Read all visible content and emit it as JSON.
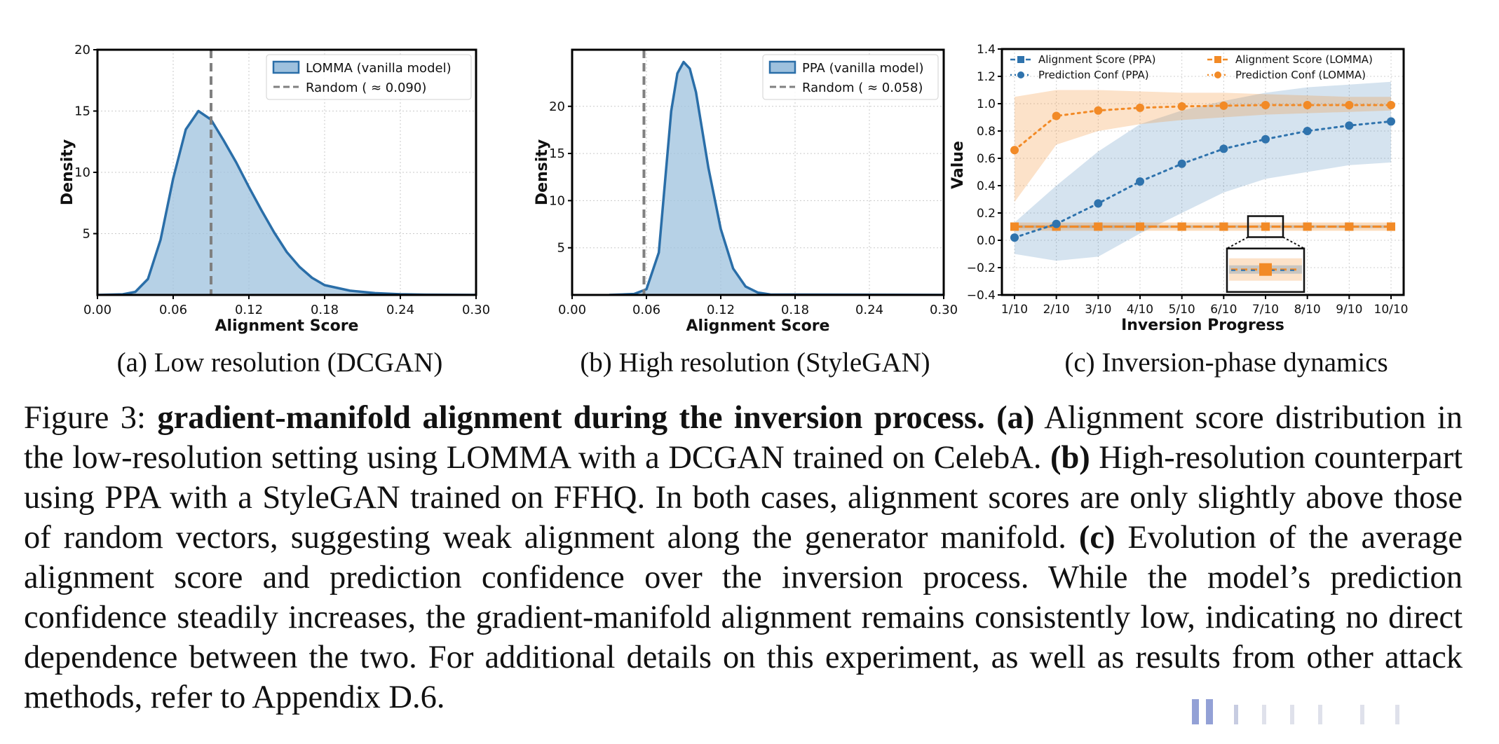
{
  "figure": {
    "subcaptions": {
      "a": "(a) Low resolution (DCGAN)",
      "b": "(b) High resolution (StyleGAN)",
      "c": "(c) Inversion-phase dynamics"
    },
    "caption": {
      "fig_label": "Figure 3: ",
      "title_bold": "gradient-manifold alignment during the inversion process.",
      "a_tag": "(a)",
      "a_text": " Alignment score distribution in the low-resolution setting using LOMMA with a DCGAN trained on CelebA. ",
      "b_tag": "(b)",
      "b_text": " High-resolution counterpart using PPA with a StyleGAN trained on FFHQ. In both cases, alignment scores are only slightly above those of random vectors, suggesting weak alignment along the generator manifold. ",
      "c_tag": "(c)",
      "c_text": " Evolution of the average alignment score and prediction confidence over the inversion process. While the model’s prediction confidence steadily increases, the gradient-manifold alignment remains consistently low, indicating no direct dependence between the two. For additional details on this experiment, as well as results from other attack methods, refer to Appendix D.6."
    }
  },
  "chart_data": [
    {
      "type": "area",
      "title": "",
      "xlabel": "Alignment Score",
      "ylabel": "Density",
      "xlim": [
        0.0,
        0.3
      ],
      "ylim": [
        0,
        20
      ],
      "xticks": [
        "0.00",
        "0.06",
        "0.12",
        "0.18",
        "0.24",
        "0.30"
      ],
      "yticks": [
        "5",
        "10",
        "15",
        "20"
      ],
      "grid": true,
      "legend_position": "top-right",
      "fill_color": "#9ec1de",
      "line_color": "#2a6ea8",
      "series": [
        {
          "name": "LOMMA (vanilla model)",
          "x": [
            0.0,
            0.02,
            0.03,
            0.04,
            0.05,
            0.06,
            0.07,
            0.08,
            0.09,
            0.1,
            0.11,
            0.12,
            0.13,
            0.14,
            0.15,
            0.16,
            0.17,
            0.18,
            0.2,
            0.22,
            0.24,
            0.26,
            0.3
          ],
          "y": [
            0.0,
            0.05,
            0.25,
            1.3,
            4.5,
            9.5,
            13.5,
            15.0,
            14.3,
            12.6,
            10.8,
            8.8,
            6.9,
            5.1,
            3.5,
            2.3,
            1.4,
            0.8,
            0.35,
            0.15,
            0.06,
            0.02,
            0.0
          ]
        }
      ],
      "reference_line": {
        "name": "Random ( ≈ 0.090)",
        "x": 0.09,
        "color": "#808080"
      }
    },
    {
      "type": "area",
      "title": "",
      "xlabel": "Alignment Score",
      "ylabel": "Density",
      "xlim": [
        0.0,
        0.3
      ],
      "ylim": [
        0,
        26
      ],
      "xticks": [
        "0.00",
        "0.06",
        "0.12",
        "0.18",
        "0.24",
        "0.30"
      ],
      "yticks": [
        "5",
        "10",
        "15",
        "20"
      ],
      "grid": true,
      "legend_position": "top-right",
      "fill_color": "#9ec1de",
      "line_color": "#2a6ea8",
      "series": [
        {
          "name": "PPA (vanilla model)",
          "x": [
            0.03,
            0.05,
            0.06,
            0.07,
            0.075,
            0.08,
            0.085,
            0.09,
            0.095,
            0.1,
            0.105,
            0.11,
            0.12,
            0.13,
            0.14,
            0.15,
            0.16,
            0.3
          ],
          "y": [
            0.0,
            0.1,
            0.6,
            4.5,
            12.0,
            19.5,
            23.5,
            24.7,
            24.0,
            21.5,
            17.5,
            13.5,
            7.0,
            2.8,
            0.9,
            0.25,
            0.05,
            0.0
          ]
        }
      ],
      "reference_line": {
        "name": "Random ( ≈ 0.058)",
        "x": 0.058,
        "color": "#808080"
      }
    },
    {
      "type": "line",
      "title": "",
      "xlabel": "Inversion Progress",
      "ylabel": "Value",
      "categories": [
        "1/10",
        "2/10",
        "3/10",
        "4/10",
        "5/10",
        "6/10",
        "7/10",
        "8/10",
        "9/10",
        "10/10"
      ],
      "ylim": [
        -0.4,
        1.4
      ],
      "yticks": [
        "1.4",
        "1.2",
        "1.0",
        "0.8",
        "0.6",
        "0.4",
        "0.2",
        "0.0",
        "−0.2",
        "−0.4"
      ],
      "grid": true,
      "legend_position": "top",
      "series": [
        {
          "name": "Alignment Score (PPA)",
          "color": "#2f73ad",
          "marker": "square",
          "style": "dashed",
          "values": [
            0.1,
            0.1,
            0.1,
            0.1,
            0.1,
            0.1,
            0.1,
            0.1,
            0.1,
            0.1
          ],
          "band_low": [
            0.09,
            0.09,
            0.09,
            0.09,
            0.09,
            0.09,
            0.09,
            0.09,
            0.09,
            0.09
          ],
          "band_high": [
            0.11,
            0.11,
            0.11,
            0.11,
            0.11,
            0.11,
            0.11,
            0.11,
            0.11,
            0.11
          ]
        },
        {
          "name": "Prediction Conf (PPA)",
          "color": "#2f73ad",
          "marker": "circle",
          "style": "dotted",
          "values": [
            0.02,
            0.12,
            0.27,
            0.43,
            0.56,
            0.67,
            0.74,
            0.8,
            0.84,
            0.87
          ],
          "band_low": [
            -0.1,
            -0.15,
            -0.12,
            0.05,
            0.2,
            0.35,
            0.45,
            0.5,
            0.55,
            0.57
          ],
          "band_high": [
            0.13,
            0.4,
            0.65,
            0.85,
            0.95,
            1.02,
            1.08,
            1.12,
            1.14,
            1.16
          ]
        },
        {
          "name": "Alignment Score (LOMMA)",
          "color": "#f28a26",
          "marker": "square",
          "style": "dashed",
          "values": [
            0.1,
            0.1,
            0.1,
            0.1,
            0.1,
            0.1,
            0.1,
            0.1,
            0.1,
            0.1
          ],
          "band_low": [
            0.07,
            0.07,
            0.07,
            0.07,
            0.07,
            0.07,
            0.07,
            0.07,
            0.07,
            0.07
          ],
          "band_high": [
            0.13,
            0.13,
            0.13,
            0.13,
            0.13,
            0.13,
            0.13,
            0.13,
            0.13,
            0.13
          ]
        },
        {
          "name": "Prediction Conf (LOMMA)",
          "color": "#f28a26",
          "marker": "circle",
          "style": "dotted",
          "values": [
            0.66,
            0.91,
            0.95,
            0.97,
            0.98,
            0.985,
            0.99,
            0.99,
            0.99,
            0.99
          ],
          "band_low": [
            0.28,
            0.7,
            0.8,
            0.85,
            0.88,
            0.9,
            0.92,
            0.93,
            0.94,
            0.95
          ],
          "band_high": [
            1.05,
            1.1,
            1.1,
            1.09,
            1.08,
            1.08,
            1.07,
            1.06,
            1.05,
            1.05
          ]
        }
      ],
      "inset_zoom": {
        "category_index": 6,
        "shows": [
          "Alignment Score (PPA)",
          "Alignment Score (LOMMA)"
        ]
      }
    }
  ]
}
